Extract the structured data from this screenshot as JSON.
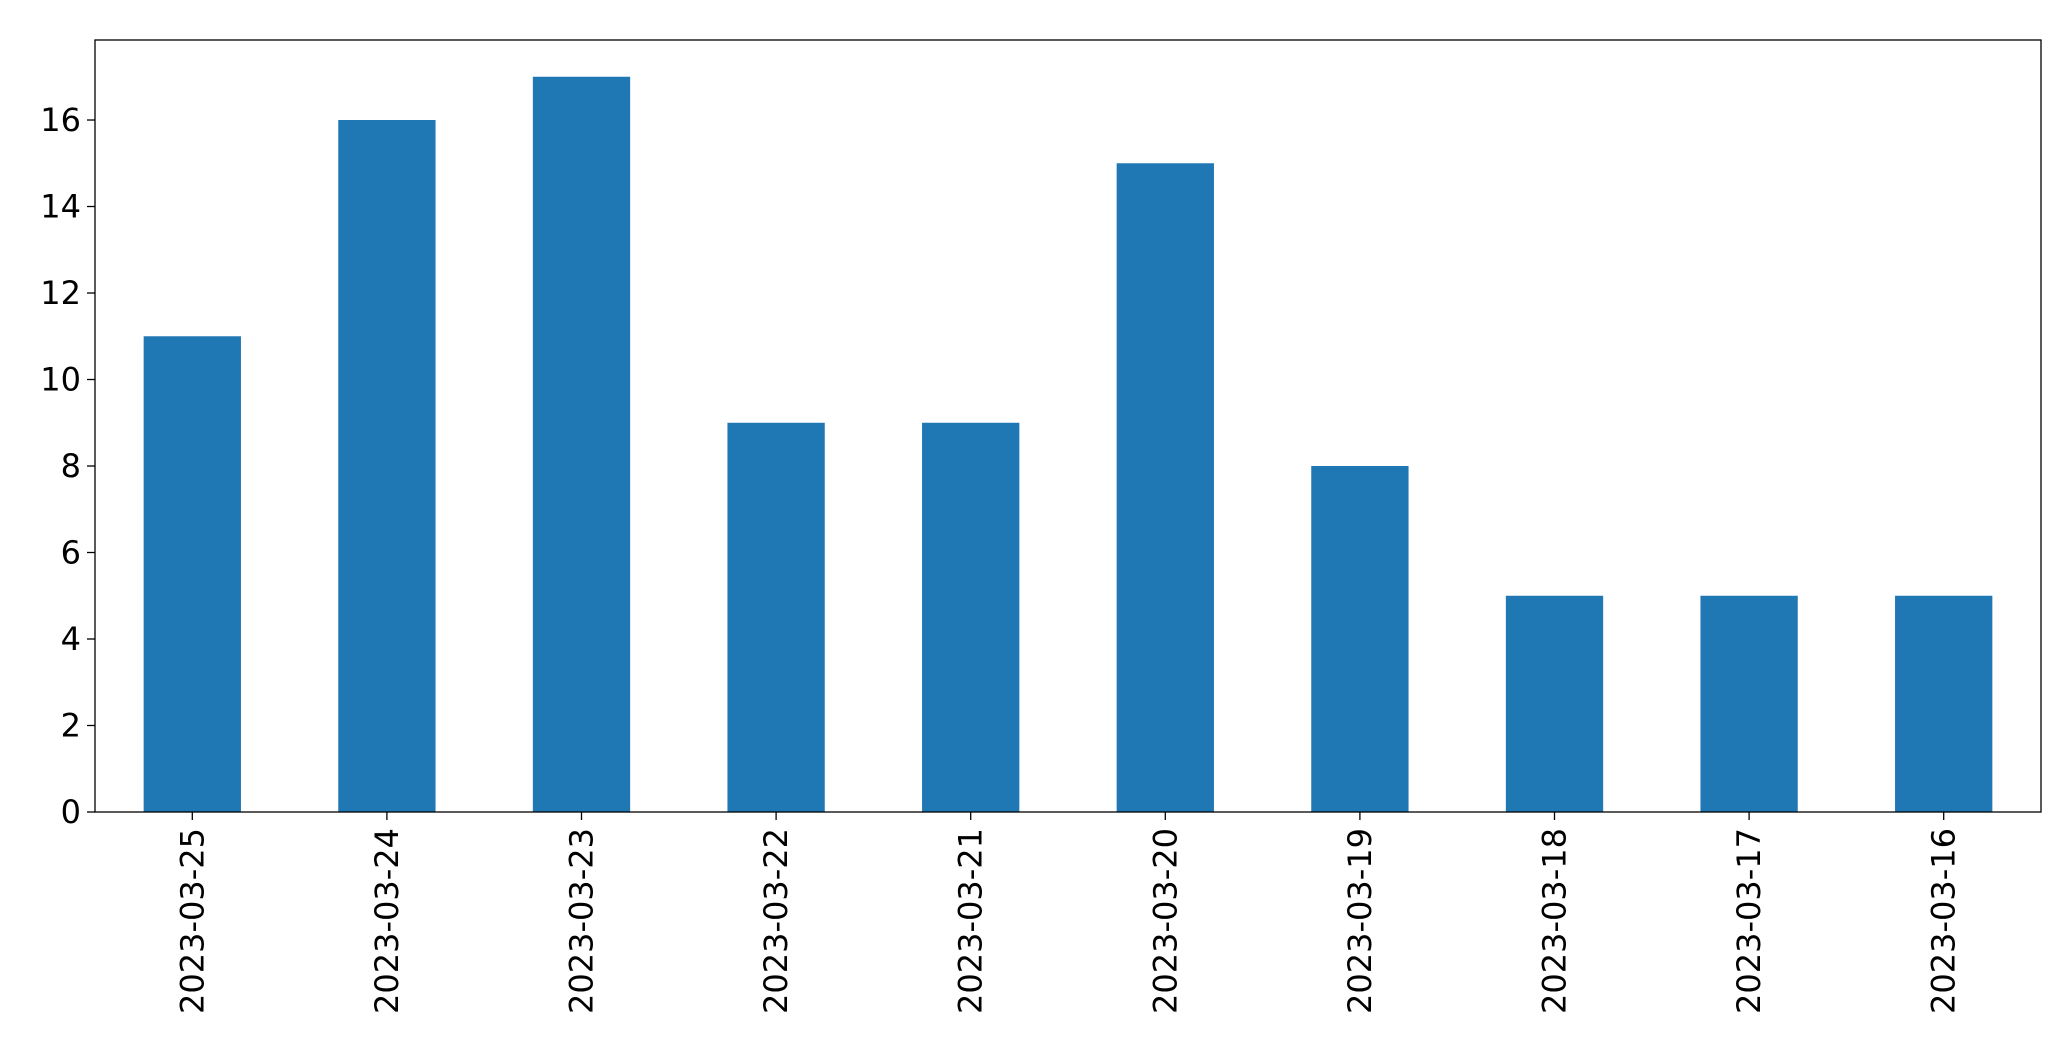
{
  "chart_data": {
    "type": "bar",
    "categories": [
      "2023-03-25",
      "2023-03-24",
      "2023-03-23",
      "2023-03-22",
      "2023-03-21",
      "2023-03-20",
      "2023-03-19",
      "2023-03-18",
      "2023-03-17",
      "2023-03-16"
    ],
    "values": [
      11,
      16,
      17,
      9,
      9,
      15,
      8,
      5,
      5,
      5
    ],
    "title": "",
    "xlabel": "",
    "ylabel": "",
    "ylim": [
      0,
      17.85
    ],
    "yticks": [
      0,
      2,
      4,
      6,
      8,
      10,
      12,
      14,
      16
    ],
    "bar_color": "#1f77b4",
    "grid": false,
    "legend": "none"
  }
}
